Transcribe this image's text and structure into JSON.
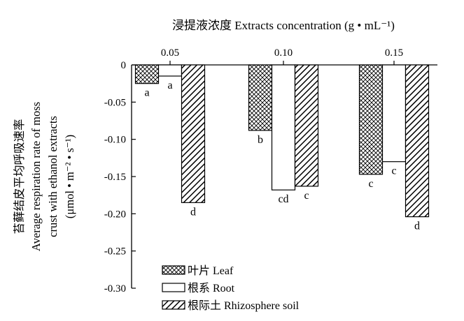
{
  "chart_data": {
    "type": "bar",
    "title": "浸提液浓度 Extracts concentration (g • mL⁻¹)",
    "xlabel": "浸提液浓度 Extracts concentration (g • mL⁻¹)",
    "ylabel_lines": [
      "苔藓结皮平均呼吸速率",
      "Average respiration rate of moss",
      "crust with ethanol extracts",
      "(μmol • m⁻² • s⁻¹)"
    ],
    "categories": [
      "0.05",
      "0.10",
      "0.15"
    ],
    "ylim": [
      -0.3,
      0
    ],
    "yticks": [
      0,
      -0.05,
      -0.1,
      -0.15,
      -0.2,
      -0.25,
      -0.3
    ],
    "ytick_labels": [
      "0",
      "-0.05",
      "-0.10",
      "-0.15",
      "-0.20",
      "-0.25",
      "-0.30"
    ],
    "x_axis_position": "top",
    "grid": false,
    "legend_position": "bottom-left",
    "series": [
      {
        "name": "叶片 Leaf",
        "pattern": "crosshatch",
        "values": [
          -0.025,
          -0.088,
          -0.147
        ],
        "labels": [
          "a",
          "b",
          "c"
        ]
      },
      {
        "name": "根系 Root",
        "pattern": "white",
        "values": [
          -0.015,
          -0.168,
          -0.13
        ],
        "labels": [
          "a",
          "cd",
          "c"
        ]
      },
      {
        "name": "根际土 Rhizosphere soil",
        "pattern": "diagonal",
        "values": [
          -0.185,
          -0.163,
          -0.204
        ],
        "labels": [
          "d",
          "c",
          "d"
        ]
      }
    ]
  }
}
